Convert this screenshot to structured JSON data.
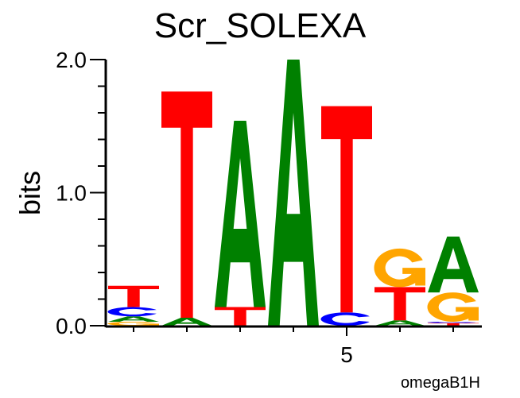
{
  "chart_data": {
    "type": "sequence-logo",
    "title": "Scr_SOLEXA",
    "ylabel": "bits",
    "xlabel": "",
    "footer": "omegaB1H",
    "ylim": [
      0,
      2
    ],
    "y_ticks": [
      {
        "value": 0,
        "label": "0.0"
      },
      {
        "value": 1,
        "label": "1.0"
      },
      {
        "value": 2,
        "label": "2.0"
      }
    ],
    "y_minor_step": 0.2,
    "x_tick_labels": [
      {
        "position": 5,
        "label": "5"
      }
    ],
    "colors": {
      "A": "#008000",
      "C": "#0000ff",
      "G": "#ffa500",
      "T": "#ff0000"
    },
    "positions": [
      {
        "pos": 1,
        "letters": [
          {
            "base": "G",
            "bits": 0.03
          },
          {
            "base": "A",
            "bits": 0.04
          },
          {
            "base": "C",
            "bits": 0.07
          },
          {
            "base": "T",
            "bits": 0.16
          }
        ]
      },
      {
        "pos": 2,
        "letters": [
          {
            "base": "A",
            "bits": 0.06
          },
          {
            "base": "T",
            "bits": 1.7
          }
        ]
      },
      {
        "pos": 3,
        "letters": [
          {
            "base": "T",
            "bits": 0.14
          },
          {
            "base": "A",
            "bits": 1.4
          }
        ]
      },
      {
        "pos": 4,
        "letters": [
          {
            "base": "A",
            "bits": 2.0
          }
        ]
      },
      {
        "pos": 5,
        "letters": [
          {
            "base": "C",
            "bits": 0.1
          },
          {
            "base": "T",
            "bits": 1.55
          }
        ]
      },
      {
        "pos": 6,
        "letters": [
          {
            "base": "A",
            "bits": 0.04
          },
          {
            "base": "T",
            "bits": 0.25
          },
          {
            "base": "G",
            "bits": 0.29
          }
        ]
      },
      {
        "pos": 7,
        "letters": [
          {
            "base": "T",
            "bits": 0.02
          },
          {
            "base": "C",
            "bits": 0.01
          },
          {
            "base": "G",
            "bits": 0.22
          },
          {
            "base": "A",
            "bits": 0.42
          }
        ]
      }
    ]
  }
}
